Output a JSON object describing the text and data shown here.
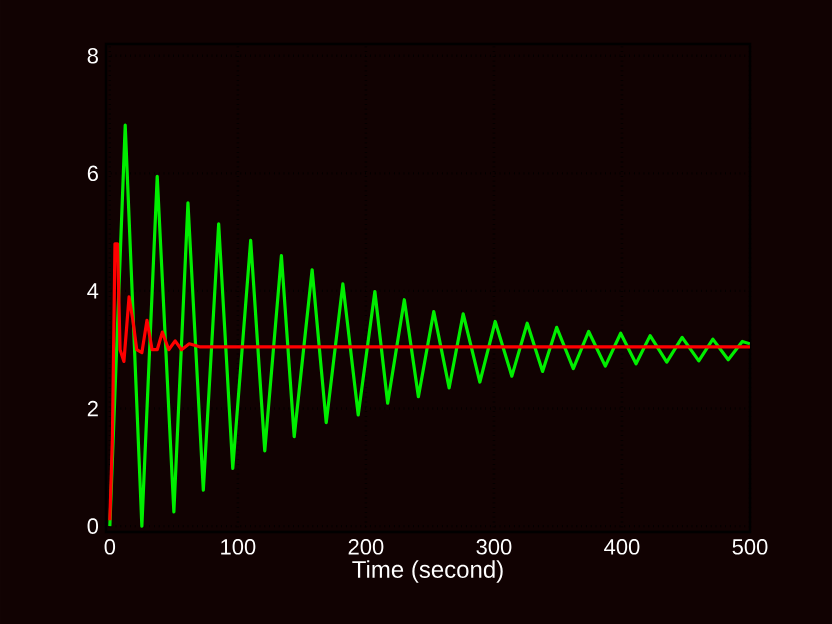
{
  "chart_data": {
    "type": "line",
    "xlabel": "Time (second)",
    "xlim": [
      -3,
      500
    ],
    "ylim": [
      -0.1,
      8.2
    ],
    "xticks": [
      0,
      100,
      200,
      300,
      400,
      500
    ],
    "yticks": [
      0,
      2,
      4,
      6,
      8
    ],
    "grid": true,
    "line_style": "solid",
    "series": [
      {
        "color": "#00ee00",
        "x": [
          0,
          12,
          25,
          37,
          50,
          61,
          73,
          85,
          96,
          110,
          121,
          134,
          144,
          158,
          169,
          182,
          194,
          207,
          217,
          230,
          241,
          253,
          265,
          276,
          289,
          301,
          314,
          326,
          338,
          349,
          362,
          374,
          387,
          399,
          411,
          422,
          435,
          447,
          460,
          471,
          483,
          494,
          500
        ],
        "values": [
          0,
          6.82,
          0,
          5.95,
          0.24,
          5.5,
          0.61,
          5.14,
          0.98,
          4.86,
          1.28,
          4.6,
          1.52,
          4.36,
          1.76,
          4.12,
          1.89,
          3.99,
          2.09,
          3.85,
          2.2,
          3.65,
          2.35,
          3.61,
          2.45,
          3.48,
          2.55,
          3.45,
          2.63,
          3.38,
          2.68,
          3.31,
          2.72,
          3.28,
          2.76,
          3.24,
          2.79,
          3.21,
          2.81,
          3.18,
          2.83,
          3.14,
          3.1
        ]
      },
      {
        "color": "#ff0000",
        "x": [
          0,
          2,
          4,
          6,
          8,
          11,
          15,
          18,
          21,
          25,
          29,
          33,
          37,
          41,
          46,
          51,
          56,
          62,
          70,
          500
        ],
        "values": [
          0.1,
          1.5,
          4.8,
          4.8,
          3.0,
          2.8,
          3.9,
          3.5,
          3.0,
          2.95,
          3.5,
          3.0,
          3.0,
          3.3,
          3.0,
          3.15,
          3.0,
          3.1,
          3.05,
          3.05
        ]
      }
    ]
  }
}
